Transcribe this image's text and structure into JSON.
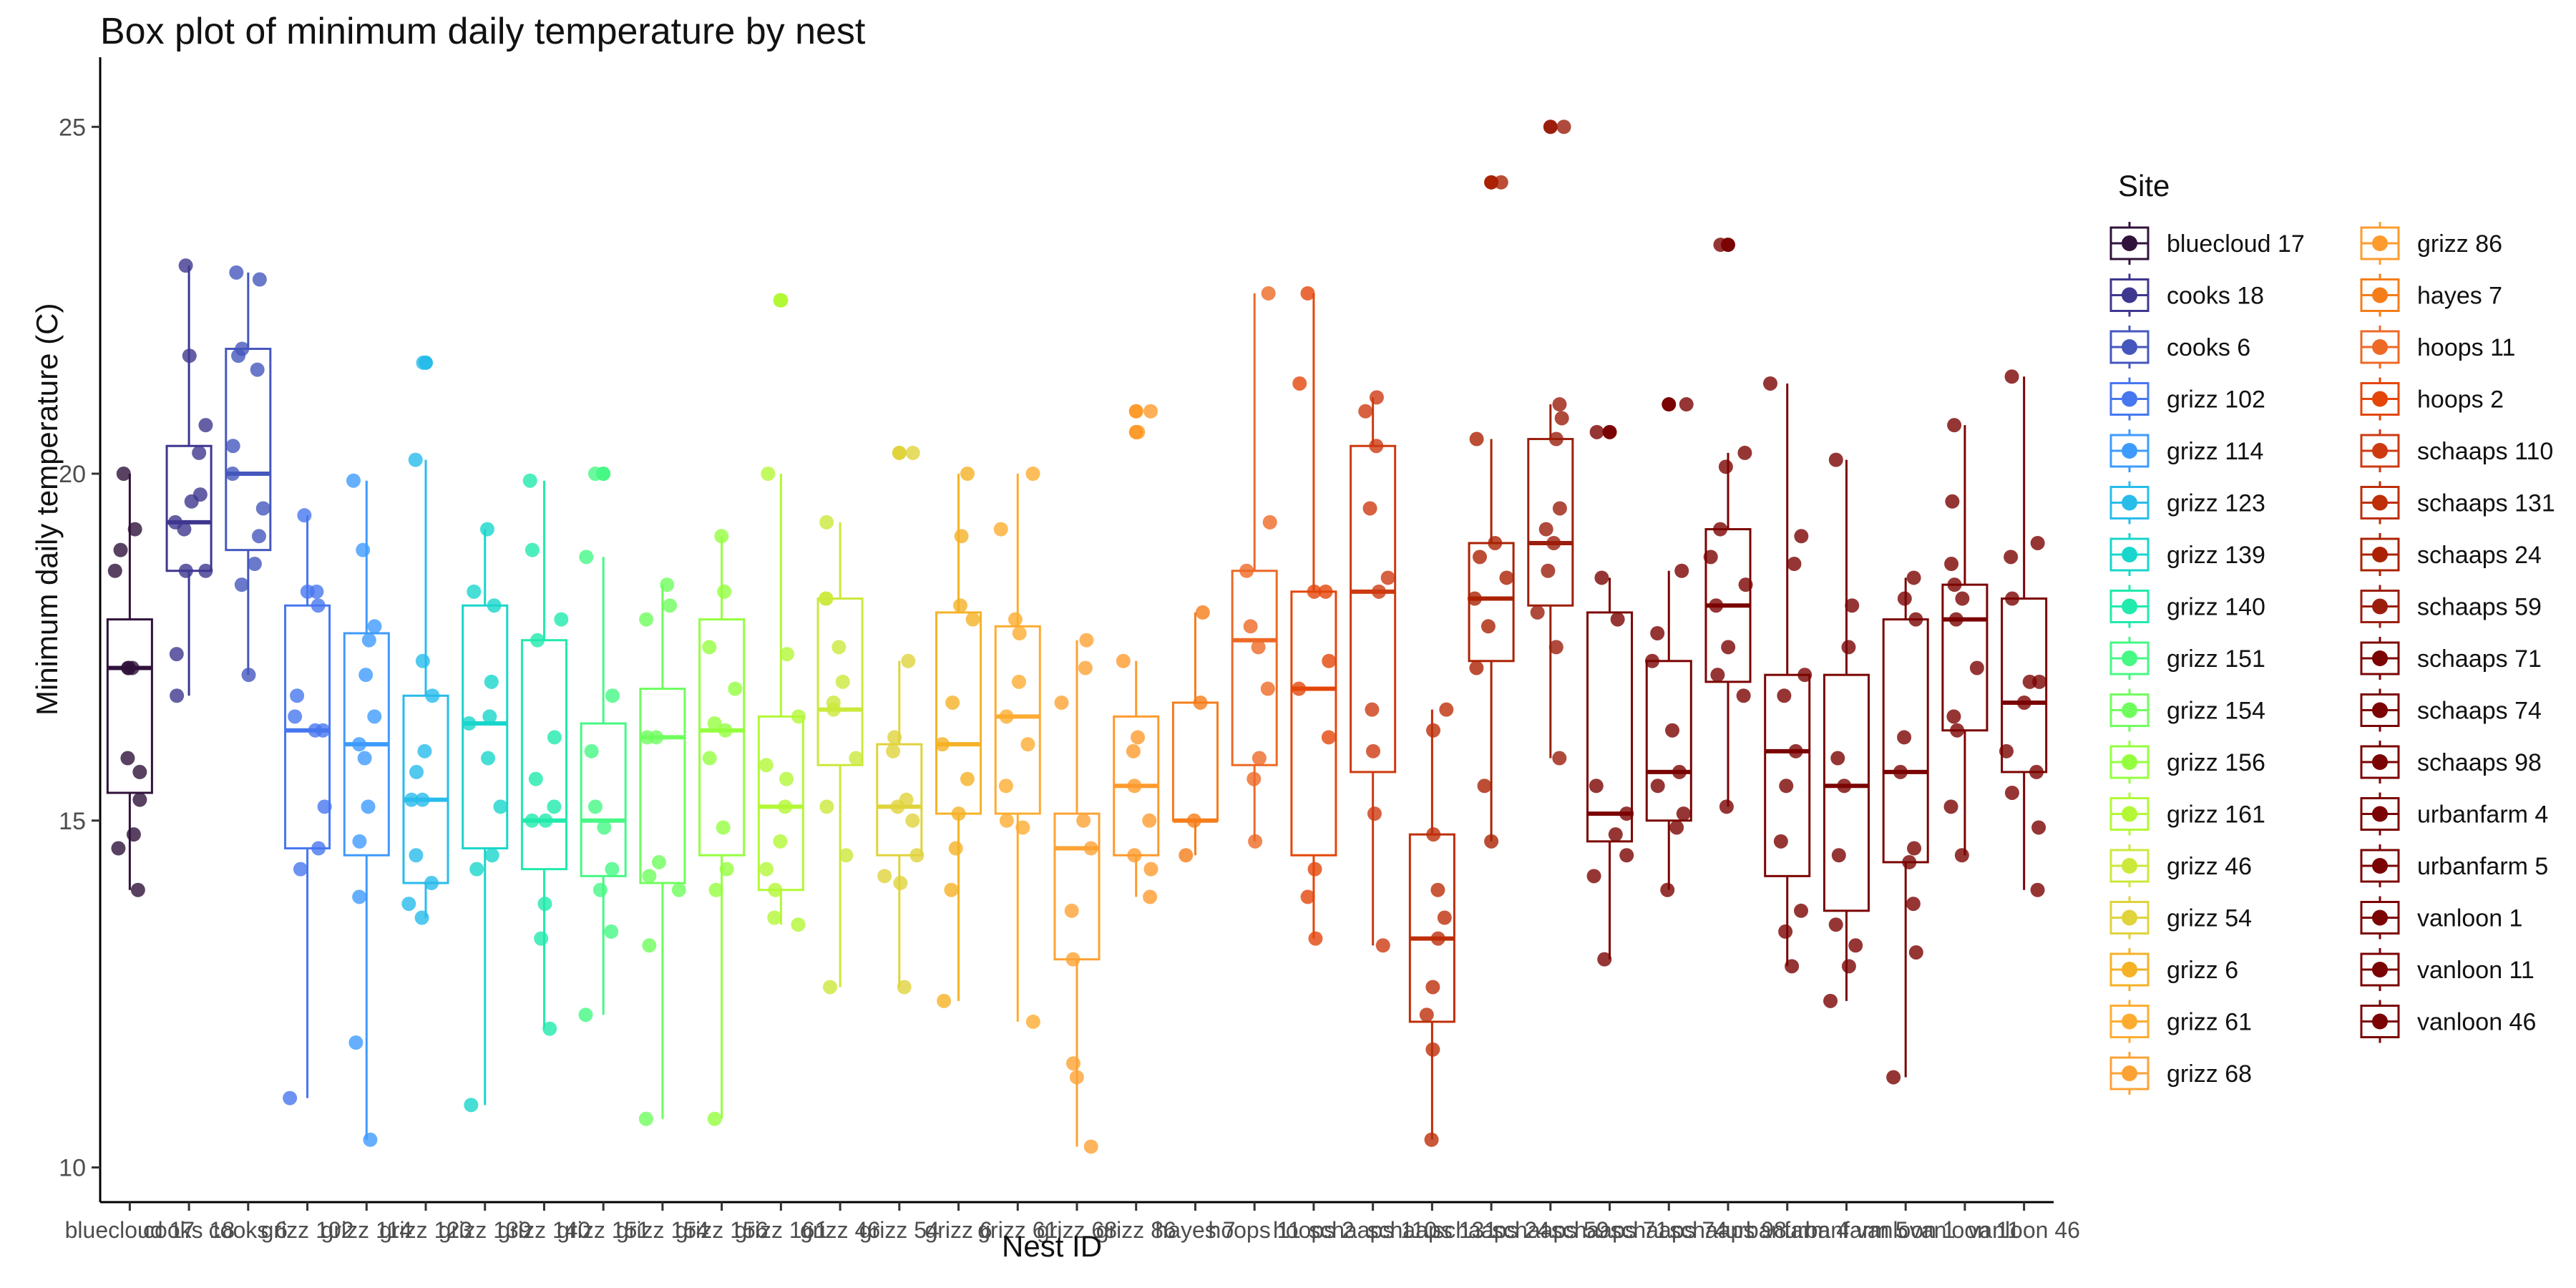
{
  "chart_data": {
    "type": "box",
    "title": "Box plot of minimum daily temperature by nest",
    "xlabel": "Nest ID",
    "ylabel": "Minimum daily temperature (C)",
    "ylim": [
      9.5,
      25.9
    ],
    "yticks": [
      10,
      15,
      20,
      25
    ],
    "grid": false,
    "legend_title": "Site",
    "legend_position": "right",
    "categories": [
      "bluecloud 17",
      "cooks 18",
      "cooks 6",
      "grizz 102",
      "grizz 114",
      "grizz 123",
      "grizz 139",
      "grizz 140",
      "grizz 151",
      "grizz 154",
      "grizz 156",
      "grizz 161",
      "grizz 46",
      "grizz 54",
      "grizz 6",
      "grizz 61",
      "grizz 68",
      "grizz 86",
      "hayes 7",
      "hoops 11",
      "hoops 2",
      "schaaps 110",
      "schaaps 131",
      "schaaps 24",
      "schaaps 59",
      "schaaps 71",
      "schaaps 74",
      "schaaps 98",
      "urbanfarm 4",
      "urbanfarm 5",
      "vanloon 1",
      "vanloon 11",
      "vanloon 46"
    ],
    "colors": [
      "#30123b",
      "#3e378f",
      "#4557bd",
      "#4777ef",
      "#3e9bfe",
      "#28bceb",
      "#18d6cb",
      "#20eaac",
      "#46f884",
      "#6ffe5e",
      "#94ff3f",
      "#b3f836",
      "#cbe93b",
      "#e0d33c",
      "#f5b227",
      "#fdac31",
      "#fca235",
      "#fe9b2d",
      "#f57d1a",
      "#ed6925",
      "#e4460a",
      "#cd3a11",
      "#bd2e09",
      "#aa2203",
      "#9b1e0d",
      "#7a0403",
      "#7a0403",
      "#7a0403",
      "#7a0403",
      "#7a0403",
      "#7a0403",
      "#7a0403",
      "#7a0403"
    ],
    "boxes": [
      {
        "min": 14.0,
        "q1": 15.4,
        "median": 17.2,
        "q3": 17.9,
        "max": 20.0,
        "outliers": []
      },
      {
        "min": 16.8,
        "q1": 18.6,
        "median": 19.3,
        "q3": 20.4,
        "max": 23.0,
        "outliers": []
      },
      {
        "min": 17.1,
        "q1": 18.9,
        "median": 20.0,
        "q3": 21.8,
        "max": 22.9,
        "outliers": []
      },
      {
        "min": 11.0,
        "q1": 14.6,
        "median": 16.3,
        "q3": 18.1,
        "max": 19.4,
        "outliers": []
      },
      {
        "min": 10.4,
        "q1": 14.5,
        "median": 16.1,
        "q3": 17.7,
        "max": 19.9,
        "outliers": []
      },
      {
        "min": 13.6,
        "q1": 14.1,
        "median": 15.3,
        "q3": 16.8,
        "max": 20.2,
        "outliers": [
          21.6
        ]
      },
      {
        "min": 10.9,
        "q1": 14.6,
        "median": 16.4,
        "q3": 18.1,
        "max": 19.2,
        "outliers": []
      },
      {
        "min": 12.0,
        "q1": 14.3,
        "median": 15.0,
        "q3": 17.6,
        "max": 19.9,
        "outliers": []
      },
      {
        "min": 12.2,
        "q1": 14.2,
        "median": 15.0,
        "q3": 16.4,
        "max": 18.8,
        "outliers": [
          20.0
        ]
      },
      {
        "min": 10.7,
        "q1": 14.1,
        "median": 16.2,
        "q3": 16.9,
        "max": 18.4,
        "outliers": []
      },
      {
        "min": 10.7,
        "q1": 14.5,
        "median": 16.3,
        "q3": 17.9,
        "max": 19.1,
        "outliers": []
      },
      {
        "min": 13.5,
        "q1": 14.0,
        "median": 15.2,
        "q3": 16.5,
        "max": 20.0,
        "outliers": [
          22.5
        ]
      },
      {
        "min": 12.6,
        "q1": 15.8,
        "median": 16.6,
        "q3": 18.2,
        "max": 19.3,
        "outliers": []
      },
      {
        "min": 12.6,
        "q1": 14.5,
        "median": 15.2,
        "q3": 16.1,
        "max": 17.3,
        "outliers": [
          20.3
        ]
      },
      {
        "min": 12.4,
        "q1": 15.1,
        "median": 16.1,
        "q3": 18.0,
        "max": 20.0,
        "outliers": []
      },
      {
        "min": 12.1,
        "q1": 15.1,
        "median": 16.5,
        "q3": 17.8,
        "max": 20.0,
        "outliers": []
      },
      {
        "min": 10.3,
        "q1": 13.0,
        "median": 14.6,
        "q3": 15.1,
        "max": 17.6,
        "outliers": []
      },
      {
        "min": 13.9,
        "q1": 14.5,
        "median": 15.5,
        "q3": 16.5,
        "max": 17.3,
        "outliers": [
          20.6,
          20.9
        ]
      },
      {
        "min": 14.5,
        "q1": 15.0,
        "median": 15.0,
        "q3": 16.7,
        "max": 18.0,
        "outliers": []
      },
      {
        "min": 14.7,
        "q1": 15.8,
        "median": 17.6,
        "q3": 18.6,
        "max": 22.6,
        "outliers": []
      },
      {
        "min": 13.3,
        "q1": 14.5,
        "median": 16.9,
        "q3": 18.3,
        "max": 22.6,
        "outliers": []
      },
      {
        "min": 13.2,
        "q1": 15.7,
        "median": 18.3,
        "q3": 20.4,
        "max": 21.1,
        "outliers": []
      },
      {
        "min": 10.4,
        "q1": 12.1,
        "median": 13.3,
        "q3": 14.8,
        "max": 16.6,
        "outliers": []
      },
      {
        "min": 14.7,
        "q1": 17.3,
        "median": 18.2,
        "q3": 19.0,
        "max": 20.5,
        "outliers": [
          24.2
        ]
      },
      {
        "min": 15.9,
        "q1": 18.1,
        "median": 19.0,
        "q3": 20.5,
        "max": 21.0,
        "outliers": [
          25.0
        ]
      },
      {
        "min": 13.0,
        "q1": 14.7,
        "median": 15.1,
        "q3": 18.0,
        "max": 18.5,
        "outliers": [
          20.6
        ]
      },
      {
        "min": 14.0,
        "q1": 15.0,
        "median": 15.7,
        "q3": 17.3,
        "max": 18.6,
        "outliers": [
          21.0
        ]
      },
      {
        "min": 15.2,
        "q1": 17.0,
        "median": 18.1,
        "q3": 19.2,
        "max": 20.3,
        "outliers": [
          23.3
        ]
      },
      {
        "min": 12.9,
        "q1": 14.2,
        "median": 16.0,
        "q3": 17.1,
        "max": 21.3,
        "outliers": []
      },
      {
        "min": 12.4,
        "q1": 13.7,
        "median": 15.5,
        "q3": 17.1,
        "max": 20.2,
        "outliers": []
      },
      {
        "min": 11.3,
        "q1": 14.4,
        "median": 15.7,
        "q3": 17.9,
        "max": 18.5,
        "outliers": []
      },
      {
        "min": 14.5,
        "q1": 16.3,
        "median": 17.9,
        "q3": 18.4,
        "max": 20.7,
        "outliers": []
      },
      {
        "min": 14.0,
        "q1": 15.7,
        "median": 16.7,
        "q3": 18.2,
        "max": 21.4,
        "outliers": []
      }
    ],
    "points": [
      [
        14.0,
        14.6,
        14.8,
        15.3,
        15.7,
        15.9,
        17.2,
        17.2,
        17.2,
        18.6,
        18.9,
        19.2,
        20.0
      ],
      [
        16.8,
        17.4,
        18.6,
        18.6,
        19.2,
        19.3,
        19.6,
        19.7,
        20.3,
        20.7,
        21.7,
        23.0
      ],
      [
        17.1,
        18.4,
        18.7,
        19.1,
        19.5,
        20.0,
        20.4,
        21.5,
        21.7,
        21.8,
        22.8,
        22.9
      ],
      [
        11.0,
        14.3,
        14.6,
        15.2,
        16.3,
        16.3,
        16.5,
        16.8,
        18.1,
        18.3,
        18.3,
        19.4
      ],
      [
        10.4,
        11.8,
        13.9,
        14.7,
        15.2,
        15.9,
        16.1,
        16.5,
        17.1,
        17.6,
        17.8,
        18.9,
        19.9
      ],
      [
        13.6,
        13.8,
        14.1,
        14.5,
        15.3,
        15.3,
        15.7,
        16.0,
        16.8,
        17.3,
        20.2,
        21.6
      ],
      [
        10.9,
        14.3,
        14.5,
        15.2,
        15.9,
        16.4,
        16.5,
        17.0,
        18.1,
        18.3,
        19.2
      ],
      [
        12.0,
        13.3,
        13.8,
        15.0,
        15.0,
        15.2,
        15.6,
        16.2,
        17.6,
        17.9,
        18.9,
        19.9
      ],
      [
        12.2,
        13.4,
        14.0,
        14.3,
        14.9,
        15.2,
        16.0,
        16.8,
        18.8,
        20.0
      ],
      [
        10.7,
        13.2,
        14.0,
        14.2,
        14.4,
        16.2,
        16.2,
        17.9,
        18.1,
        18.4
      ],
      [
        10.7,
        14.0,
        14.3,
        14.9,
        15.9,
        16.3,
        16.4,
        16.9,
        17.5,
        18.3,
        19.1
      ],
      [
        13.5,
        13.6,
        14.0,
        14.3,
        14.7,
        15.2,
        15.6,
        15.8,
        16.5,
        17.4,
        20.0,
        22.5
      ],
      [
        12.6,
        14.5,
        15.2,
        15.9,
        16.6,
        16.7,
        17.0,
        17.5,
        18.2,
        18.2,
        19.3
      ],
      [
        12.6,
        14.1,
        14.2,
        14.5,
        15.0,
        15.2,
        15.3,
        16.0,
        16.2,
        17.3,
        20.3
      ],
      [
        12.4,
        14.0,
        14.6,
        15.1,
        15.6,
        16.1,
        16.7,
        17.9,
        18.1,
        19.1,
        20.0
      ],
      [
        12.1,
        14.9,
        15.0,
        15.5,
        16.1,
        16.5,
        17.0,
        17.7,
        17.9,
        19.2,
        20.0
      ],
      [
        10.3,
        11.3,
        11.5,
        13.0,
        13.7,
        14.6,
        15.0,
        16.7,
        17.2,
        17.6
      ],
      [
        13.9,
        14.3,
        14.5,
        15.0,
        15.5,
        16.0,
        16.2,
        17.3,
        20.6,
        20.9
      ],
      [
        14.5,
        15.0,
        16.7,
        18.0
      ],
      [
        14.7,
        15.6,
        15.9,
        16.9,
        17.5,
        17.8,
        18.6,
        19.3,
        22.6
      ],
      [
        13.3,
        13.9,
        14.3,
        16.2,
        16.9,
        17.3,
        18.3,
        18.3,
        21.3,
        22.6
      ],
      [
        13.2,
        15.1,
        16.0,
        16.6,
        18.3,
        18.5,
        19.5,
        20.4,
        20.9,
        21.1
      ],
      [
        10.4,
        11.7,
        12.2,
        12.6,
        13.3,
        13.6,
        14.0,
        14.8,
        16.3,
        16.6
      ],
      [
        14.7,
        15.5,
        17.2,
        17.8,
        18.2,
        18.5,
        18.8,
        19.0,
        20.5,
        24.2
      ],
      [
        15.9,
        17.5,
        18.0,
        18.6,
        19.0,
        19.2,
        19.5,
        20.5,
        20.8,
        21.0,
        25.0
      ],
      [
        13.0,
        14.2,
        14.5,
        14.8,
        15.1,
        15.5,
        17.9,
        18.5,
        20.6
      ],
      [
        14.0,
        14.9,
        15.1,
        15.5,
        15.7,
        16.3,
        17.3,
        17.7,
        18.6,
        21.0
      ],
      [
        15.2,
        16.8,
        17.1,
        17.5,
        18.1,
        18.4,
        18.8,
        19.2,
        20.1,
        20.3,
        23.3
      ],
      [
        12.9,
        13.4,
        13.7,
        14.7,
        15.5,
        16.0,
        16.8,
        17.1,
        18.7,
        19.1,
        21.3
      ],
      [
        12.4,
        12.9,
        13.2,
        13.5,
        14.5,
        15.5,
        15.9,
        17.5,
        18.1,
        20.2
      ],
      [
        11.3,
        13.1,
        13.8,
        14.4,
        14.6,
        15.7,
        16.2,
        17.9,
        18.2,
        18.5
      ],
      [
        14.5,
        15.2,
        16.3,
        16.5,
        17.2,
        17.9,
        18.2,
        18.4,
        18.7,
        19.6,
        20.7
      ],
      [
        14.0,
        14.9,
        15.4,
        15.7,
        16.0,
        16.7,
        17.0,
        17.0,
        18.2,
        18.8,
        19.0,
        21.4
      ]
    ]
  }
}
